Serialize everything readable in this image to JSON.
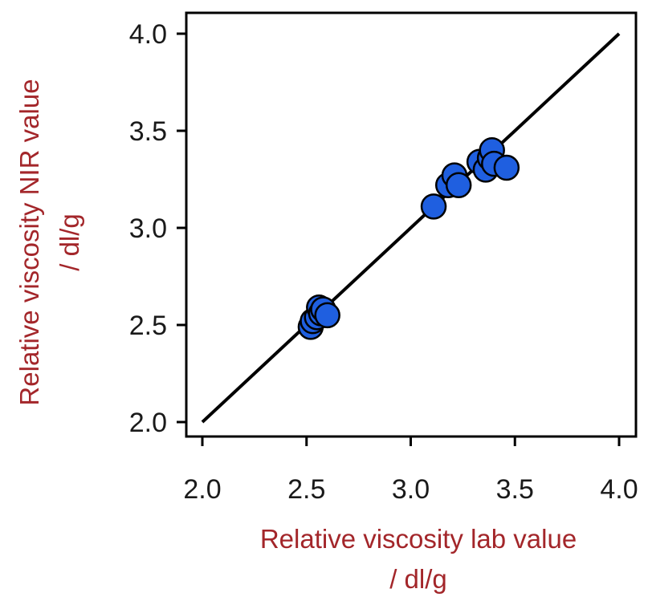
{
  "chart_data": {
    "type": "scatter",
    "title": "",
    "xlabel_line1": "Relative viscosity lab value",
    "xlabel_line2": "/ dl/g",
    "ylabel_line1": "Relative viscosity NIR value",
    "ylabel_line2": "/ dl/g",
    "xlim": [
      2.0,
      4.0
    ],
    "ylim": [
      2.0,
      4.0
    ],
    "xticks": [
      "2.0",
      "2.5",
      "3.0",
      "3.5",
      "4.0"
    ],
    "yticks": [
      "2.0",
      "2.5",
      "3.0",
      "3.5",
      "4.0"
    ],
    "grid": false,
    "legend": "none",
    "reference_line": {
      "from": [
        2.0,
        2.0
      ],
      "to": [
        4.0,
        4.0
      ]
    },
    "point_color": "#1f5fe0",
    "series": [
      {
        "points": [
          {
            "x": 2.52,
            "y": 2.49
          },
          {
            "x": 2.53,
            "y": 2.52
          },
          {
            "x": 2.55,
            "y": 2.54
          },
          {
            "x": 2.56,
            "y": 2.59
          },
          {
            "x": 2.57,
            "y": 2.56
          },
          {
            "x": 2.58,
            "y": 2.58
          },
          {
            "x": 2.6,
            "y": 2.55
          },
          {
            "x": 3.11,
            "y": 3.11
          },
          {
            "x": 3.18,
            "y": 3.22
          },
          {
            "x": 3.21,
            "y": 3.27
          },
          {
            "x": 3.23,
            "y": 3.22
          },
          {
            "x": 3.33,
            "y": 3.34
          },
          {
            "x": 3.36,
            "y": 3.3
          },
          {
            "x": 3.38,
            "y": 3.36
          },
          {
            "x": 3.39,
            "y": 3.4
          },
          {
            "x": 3.4,
            "y": 3.33
          },
          {
            "x": 3.46,
            "y": 3.31
          }
        ]
      }
    ]
  }
}
